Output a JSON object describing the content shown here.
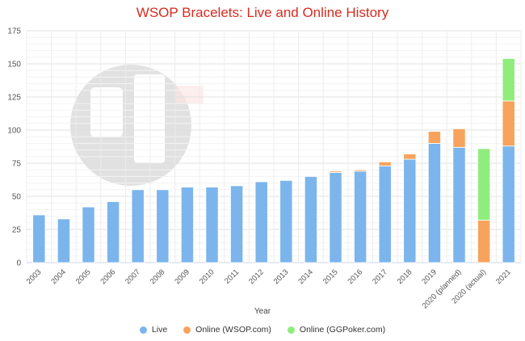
{
  "chart_data": {
    "type": "bar",
    "stacked": true,
    "title": "WSOP Bracelets: Live and Online History",
    "xlabel": "Year",
    "ylabel": "",
    "ylim": [
      0,
      175
    ],
    "yticks": [
      0,
      25,
      50,
      75,
      100,
      125,
      150,
      175
    ],
    "grid": true,
    "legend_position": "bottom",
    "categories": [
      "2003",
      "2004",
      "2005",
      "2006",
      "2007",
      "2008",
      "2009",
      "2010",
      "2011",
      "2012",
      "2013",
      "2014",
      "2015",
      "2016",
      "2017",
      "2018",
      "2019",
      "2020 (planned)",
      "2020 (actual)",
      "2021"
    ],
    "series": [
      {
        "name": "Live",
        "color": "#7cb5ec",
        "values": [
          36,
          33,
          42,
          46,
          55,
          55,
          57,
          57,
          58,
          61,
          62,
          65,
          68,
          69,
          73,
          78,
          90,
          87,
          0,
          88
        ]
      },
      {
        "name": "Online (WSOP.com)",
        "color": "#f7a35c",
        "values": [
          0,
          0,
          0,
          0,
          0,
          0,
          0,
          0,
          0,
          0,
          0,
          0,
          1,
          1,
          3,
          4,
          9,
          14,
          32,
          34
        ]
      },
      {
        "name": "Online (GGPoker.com)",
        "color": "#90ed7d",
        "values": [
          0,
          0,
          0,
          0,
          0,
          0,
          0,
          0,
          0,
          0,
          0,
          0,
          0,
          0,
          0,
          0,
          0,
          0,
          54,
          32
        ]
      }
    ]
  }
}
